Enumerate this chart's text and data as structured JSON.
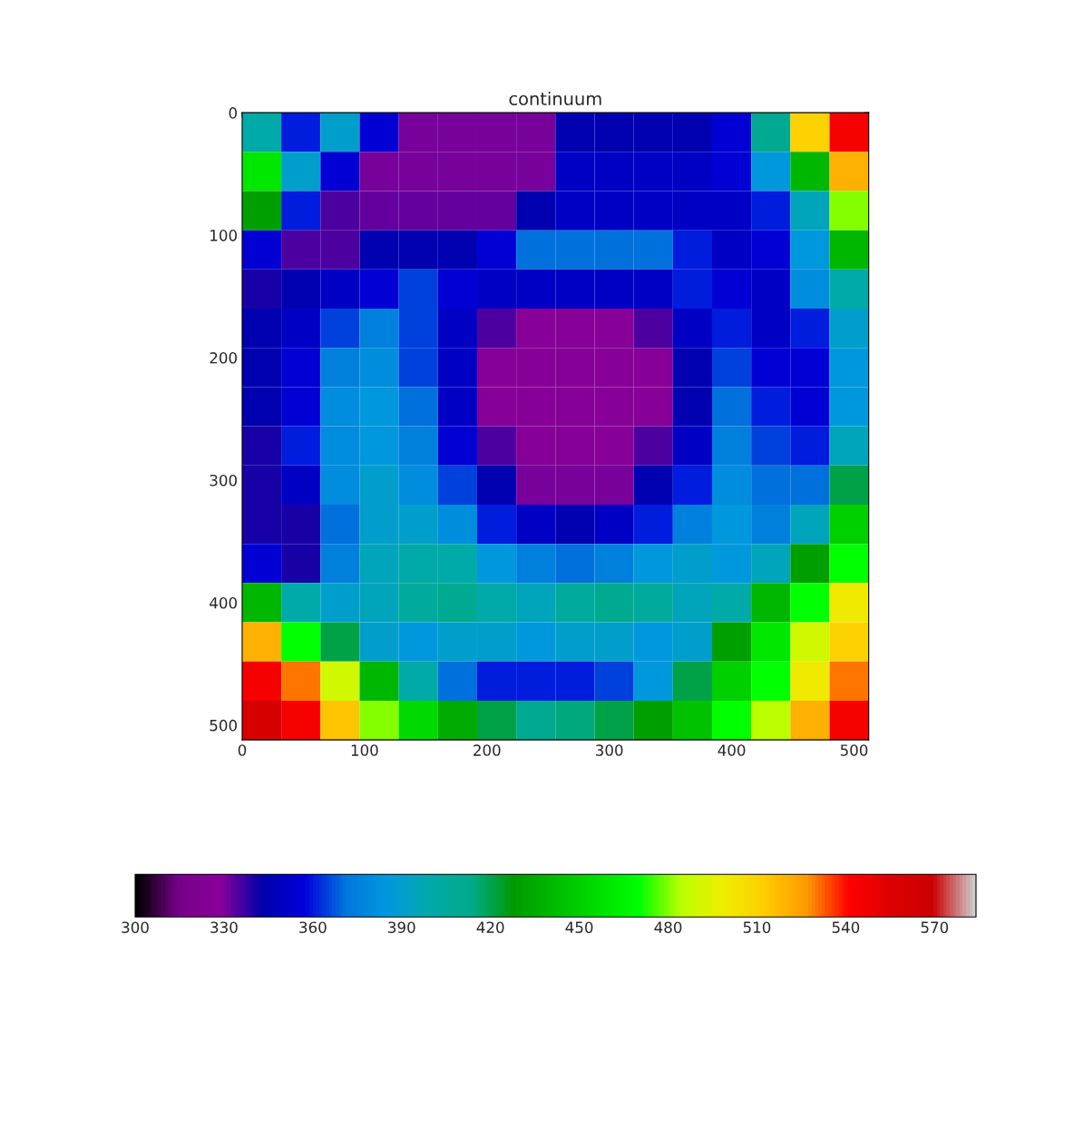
{
  "chart_data": {
    "type": "heatmap",
    "title": "continuum",
    "x": [
      16,
      48,
      80,
      112,
      144,
      176,
      208,
      240,
      272,
      304,
      336,
      368,
      400,
      432,
      464,
      496
    ],
    "y": [
      16,
      48,
      80,
      112,
      144,
      176,
      208,
      240,
      272,
      304,
      336,
      368,
      400,
      432,
      464,
      496
    ],
    "xlim": [
      0,
      512
    ],
    "ylim": [
      512,
      0
    ],
    "xticks": [
      0,
      100,
      200,
      300,
      400,
      500
    ],
    "yticks": [
      0,
      100,
      200,
      300,
      400,
      500
    ],
    "clim": [
      300,
      584
    ],
    "cticks": [
      300,
      330,
      360,
      390,
      420,
      450,
      480,
      510,
      540,
      570
    ],
    "grid": false,
    "cells": [
      [
        400,
        360,
        390,
        355,
        330,
        330,
        330,
        330,
        345,
        345,
        345,
        345,
        355,
        410,
        510,
        545
      ],
      [
        460,
        390,
        355,
        330,
        330,
        330,
        330,
        330,
        350,
        350,
        350,
        350,
        355,
        385,
        440,
        520
      ],
      [
        430,
        360,
        335,
        333,
        333,
        333,
        333,
        345,
        350,
        350,
        350,
        350,
        350,
        360,
        395,
        480
      ],
      [
        355,
        335,
        335,
        345,
        345,
        345,
        355,
        370,
        370,
        370,
        370,
        360,
        350,
        355,
        385,
        440
      ],
      [
        340,
        345,
        350,
        355,
        365,
        355,
        350,
        350,
        350,
        350,
        350,
        360,
        355,
        350,
        380,
        400
      ],
      [
        345,
        350,
        365,
        375,
        365,
        350,
        335,
        328,
        328,
        328,
        335,
        350,
        360,
        350,
        360,
        390
      ],
      [
        345,
        355,
        375,
        380,
        365,
        350,
        327,
        327,
        327,
        327,
        327,
        345,
        365,
        355,
        355,
        385
      ],
      [
        345,
        355,
        380,
        385,
        370,
        350,
        327,
        327,
        327,
        327,
        327,
        345,
        370,
        360,
        355,
        385
      ],
      [
        340,
        360,
        380,
        385,
        375,
        355,
        335,
        327,
        327,
        327,
        335,
        350,
        375,
        365,
        360,
        395
      ],
      [
        340,
        350,
        380,
        390,
        380,
        365,
        345,
        330,
        330,
        330,
        345,
        360,
        380,
        370,
        370,
        420
      ],
      [
        340,
        340,
        370,
        390,
        390,
        380,
        360,
        350,
        345,
        350,
        360,
        375,
        385,
        375,
        395,
        450
      ],
      [
        355,
        340,
        375,
        395,
        400,
        400,
        385,
        375,
        370,
        375,
        385,
        390,
        385,
        395,
        430,
        470
      ],
      [
        440,
        400,
        390,
        395,
        405,
        410,
        400,
        395,
        405,
        410,
        405,
        395,
        400,
        440,
        470,
        500
      ],
      [
        520,
        470,
        420,
        390,
        385,
        390,
        390,
        385,
        390,
        390,
        385,
        390,
        430,
        460,
        490,
        510
      ],
      [
        545,
        530,
        490,
        440,
        400,
        370,
        360,
        360,
        360,
        365,
        385,
        420,
        450,
        470,
        500,
        530
      ],
      [
        560,
        545,
        515,
        480,
        455,
        435,
        420,
        410,
        415,
        420,
        430,
        445,
        470,
        485,
        520,
        545
      ]
    ]
  }
}
